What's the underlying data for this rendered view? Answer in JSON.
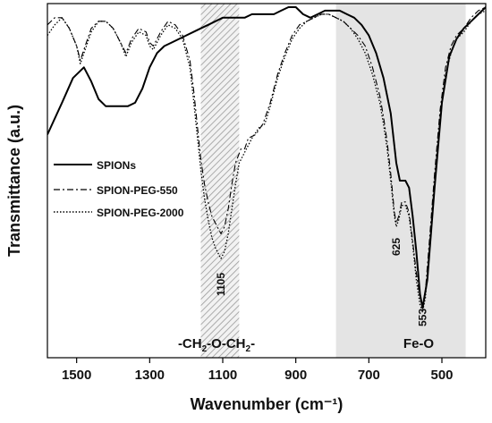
{
  "chart_data": {
    "type": "line",
    "xlabel": "Wavenumber (cm⁻¹)",
    "ylabel": "Transmittance (a.u.)",
    "xlim": [
      1580,
      380
    ],
    "ylim": [
      0,
      100
    ],
    "x_reversed": true,
    "xticks": [
      1500,
      1300,
      1100,
      900,
      700,
      500
    ],
    "yticks_visible": false,
    "grid": false,
    "legend_position": "left-middle",
    "series": [
      {
        "name": "SPIONs",
        "style": "solid",
        "points": [
          [
            1580,
            63
          ],
          [
            1540,
            72
          ],
          [
            1510,
            79
          ],
          [
            1480,
            82
          ],
          [
            1460,
            78
          ],
          [
            1440,
            73
          ],
          [
            1420,
            71
          ],
          [
            1400,
            71
          ],
          [
            1380,
            71
          ],
          [
            1360,
            71
          ],
          [
            1340,
            72
          ],
          [
            1320,
            76
          ],
          [
            1300,
            82
          ],
          [
            1280,
            86
          ],
          [
            1260,
            88
          ],
          [
            1240,
            89
          ],
          [
            1220,
            90
          ],
          [
            1200,
            91
          ],
          [
            1180,
            92
          ],
          [
            1160,
            93
          ],
          [
            1140,
            94
          ],
          [
            1120,
            95
          ],
          [
            1100,
            96
          ],
          [
            1080,
            96
          ],
          [
            1060,
            96
          ],
          [
            1040,
            96
          ],
          [
            1020,
            97
          ],
          [
            1000,
            97
          ],
          [
            980,
            97
          ],
          [
            960,
            97
          ],
          [
            940,
            98
          ],
          [
            920,
            99
          ],
          [
            900,
            99
          ],
          [
            880,
            97
          ],
          [
            860,
            96
          ],
          [
            840,
            97
          ],
          [
            820,
            98
          ],
          [
            800,
            98
          ],
          [
            780,
            98
          ],
          [
            760,
            97
          ],
          [
            740,
            96
          ],
          [
            720,
            94
          ],
          [
            700,
            91
          ],
          [
            680,
            86
          ],
          [
            660,
            79
          ],
          [
            640,
            69
          ],
          [
            625,
            55
          ],
          [
            615,
            50
          ],
          [
            600,
            50
          ],
          [
            590,
            48
          ],
          [
            580,
            40
          ],
          [
            570,
            30
          ],
          [
            560,
            18
          ],
          [
            553,
            14
          ],
          [
            540,
            22
          ],
          [
            520,
            48
          ],
          [
            500,
            72
          ],
          [
            480,
            85
          ],
          [
            460,
            90
          ],
          [
            440,
            93
          ],
          [
            420,
            95
          ],
          [
            400,
            97
          ],
          [
            380,
            99
          ]
        ]
      },
      {
        "name": "SPION-PEG-550",
        "style": "dash-dot",
        "points": [
          [
            1580,
            94
          ],
          [
            1560,
            96
          ],
          [
            1540,
            96
          ],
          [
            1520,
            93
          ],
          [
            1500,
            88
          ],
          [
            1490,
            84
          ],
          [
            1480,
            87
          ],
          [
            1460,
            93
          ],
          [
            1440,
            95
          ],
          [
            1420,
            95
          ],
          [
            1400,
            93
          ],
          [
            1380,
            89
          ],
          [
            1365,
            86
          ],
          [
            1350,
            90
          ],
          [
            1330,
            93
          ],
          [
            1310,
            92
          ],
          [
            1300,
            89
          ],
          [
            1290,
            88
          ],
          [
            1270,
            92
          ],
          [
            1250,
            95
          ],
          [
            1230,
            94
          ],
          [
            1210,
            91
          ],
          [
            1190,
            84
          ],
          [
            1180,
            76
          ],
          [
            1170,
            66
          ],
          [
            1160,
            56
          ],
          [
            1150,
            49
          ],
          [
            1140,
            44
          ],
          [
            1130,
            40
          ],
          [
            1120,
            38
          ],
          [
            1110,
            36
          ],
          [
            1105,
            35
          ],
          [
            1095,
            37
          ],
          [
            1085,
            42
          ],
          [
            1075,
            49
          ],
          [
            1065,
            55
          ],
          [
            1050,
            59
          ],
          [
            1040,
            59
          ],
          [
            1030,
            62
          ],
          [
            1010,
            63
          ],
          [
            990,
            66
          ],
          [
            970,
            72
          ],
          [
            950,
            80
          ],
          [
            930,
            86
          ],
          [
            910,
            91
          ],
          [
            890,
            94
          ],
          [
            870,
            95
          ],
          [
            850,
            96
          ],
          [
            830,
            97
          ],
          [
            810,
            97
          ],
          [
            790,
            96
          ],
          [
            770,
            95
          ],
          [
            750,
            93
          ],
          [
            730,
            91
          ],
          [
            710,
            88
          ],
          [
            690,
            82
          ],
          [
            670,
            74
          ],
          [
            660,
            68
          ],
          [
            650,
            61
          ],
          [
            640,
            52
          ],
          [
            630,
            41
          ],
          [
            625,
            38
          ],
          [
            618,
            40
          ],
          [
            610,
            44
          ],
          [
            600,
            44
          ],
          [
            590,
            41
          ],
          [
            580,
            33
          ],
          [
            570,
            24
          ],
          [
            560,
            17
          ],
          [
            553,
            15
          ],
          [
            545,
            19
          ],
          [
            535,
            32
          ],
          [
            520,
            52
          ],
          [
            505,
            70
          ],
          [
            490,
            82
          ],
          [
            475,
            88
          ],
          [
            460,
            91
          ],
          [
            440,
            93
          ],
          [
            420,
            96
          ],
          [
            400,
            98
          ],
          [
            380,
            99
          ]
        ]
      },
      {
        "name": "SPION-PEG-2000",
        "style": "dotted",
        "points": [
          [
            1580,
            91
          ],
          [
            1560,
            94
          ],
          [
            1540,
            96
          ],
          [
            1520,
            93
          ],
          [
            1500,
            88
          ],
          [
            1490,
            83
          ],
          [
            1480,
            86
          ],
          [
            1460,
            92
          ],
          [
            1440,
            95
          ],
          [
            1420,
            95
          ],
          [
            1400,
            93
          ],
          [
            1380,
            89
          ],
          [
            1365,
            85
          ],
          [
            1350,
            89
          ],
          [
            1330,
            92
          ],
          [
            1310,
            91
          ],
          [
            1300,
            88
          ],
          [
            1290,
            87
          ],
          [
            1270,
            91
          ],
          [
            1250,
            94
          ],
          [
            1230,
            93
          ],
          [
            1210,
            90
          ],
          [
            1190,
            82
          ],
          [
            1180,
            73
          ],
          [
            1170,
            63
          ],
          [
            1160,
            53
          ],
          [
            1150,
            45
          ],
          [
            1140,
            39
          ],
          [
            1130,
            34
          ],
          [
            1120,
            31
          ],
          [
            1110,
            29
          ],
          [
            1105,
            28
          ],
          [
            1095,
            30
          ],
          [
            1085,
            35
          ],
          [
            1075,
            42
          ],
          [
            1065,
            49
          ],
          [
            1055,
            55
          ],
          [
            1045,
            57
          ],
          [
            1035,
            59
          ],
          [
            1020,
            62
          ],
          [
            1000,
            65
          ],
          [
            985,
            66
          ],
          [
            970,
            71
          ],
          [
            950,
            79
          ],
          [
            930,
            85
          ],
          [
            910,
            90
          ],
          [
            890,
            93
          ],
          [
            870,
            95
          ],
          [
            850,
            96
          ],
          [
            830,
            97
          ],
          [
            810,
            97
          ],
          [
            790,
            96
          ],
          [
            770,
            95
          ],
          [
            750,
            93
          ],
          [
            730,
            90
          ],
          [
            710,
            86
          ],
          [
            690,
            80
          ],
          [
            670,
            72
          ],
          [
            660,
            66
          ],
          [
            650,
            59
          ],
          [
            640,
            50
          ],
          [
            630,
            40
          ],
          [
            625,
            37
          ],
          [
            618,
            39
          ],
          [
            610,
            43
          ],
          [
            600,
            43
          ],
          [
            590,
            40
          ],
          [
            580,
            32
          ],
          [
            570,
            22
          ],
          [
            560,
            15
          ],
          [
            553,
            13
          ],
          [
            545,
            17
          ],
          [
            535,
            30
          ],
          [
            520,
            50
          ],
          [
            505,
            68
          ],
          [
            490,
            80
          ],
          [
            475,
            86
          ],
          [
            460,
            90
          ],
          [
            440,
            92
          ],
          [
            420,
            95
          ],
          [
            400,
            97
          ],
          [
            380,
            98
          ]
        ]
      }
    ],
    "regions": [
      {
        "name": "-CH2-O-CH2-",
        "from": 1160,
        "to": 1055,
        "fill": "hatched"
      },
      {
        "name": "Fe-O",
        "from": 790,
        "to": 435,
        "fill": "#e4e4e4"
      }
    ],
    "annotations": [
      {
        "text": "1105",
        "x": 1105
      },
      {
        "text": "625",
        "x": 625
      },
      {
        "text": "553",
        "x": 553
      }
    ],
    "region_labels": {
      "left_prefix": "-CH",
      "left_sub1": "2",
      "left_mid": "-O-CH",
      "left_sub2": "2",
      "left_suffix": "-",
      "right": "Fe-O"
    }
  }
}
